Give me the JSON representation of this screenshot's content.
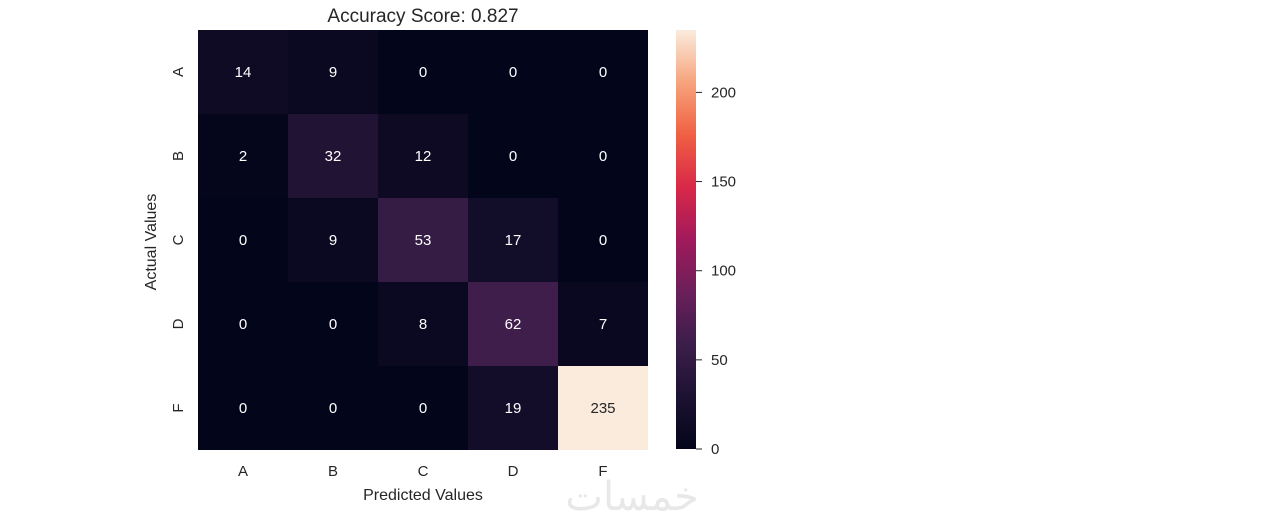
{
  "chart_data": {
    "type": "heatmap",
    "title": "Accuracy Score: 0.827",
    "xlabel": "Predicted Values",
    "ylabel": "Actual Values",
    "x_categories": [
      "A",
      "B",
      "C",
      "D",
      "F"
    ],
    "y_categories": [
      "A",
      "B",
      "C",
      "D",
      "F"
    ],
    "values": [
      [
        14,
        9,
        0,
        0,
        0
      ],
      [
        2,
        32,
        12,
        0,
        0
      ],
      [
        0,
        9,
        53,
        17,
        0
      ],
      [
        0,
        0,
        8,
        62,
        7
      ],
      [
        0,
        0,
        0,
        19,
        235
      ]
    ],
    "colorscale": "rocket",
    "colorbar": {
      "range": [
        0,
        235
      ],
      "ticks": [
        0,
        50,
        100,
        150,
        200
      ]
    }
  },
  "watermark": {
    "text": "خمسات"
  }
}
